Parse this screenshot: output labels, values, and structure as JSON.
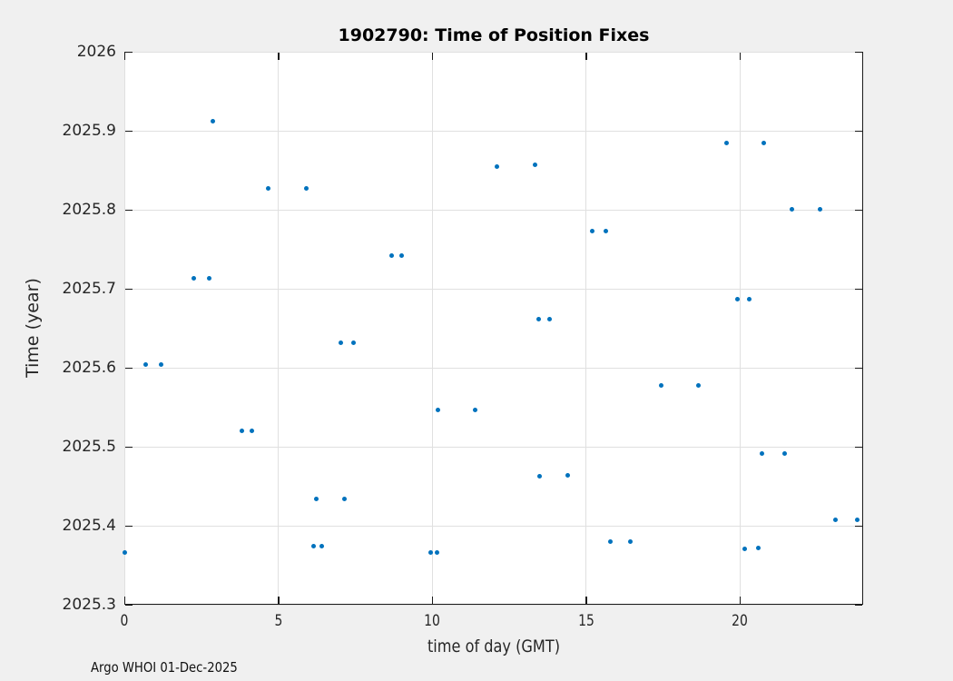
{
  "chart_data": {
    "type": "scatter",
    "title": "1902790: Time of Position Fixes",
    "xlabel": "time of day (GMT)",
    "ylabel": "Time (year)",
    "footer": "Argo WHOI 01-Dec-2025",
    "xlim": [
      0,
      24
    ],
    "ylim": [
      2025.3,
      2026
    ],
    "grid": true,
    "legend": "none",
    "xticks": [
      {
        "value": 0,
        "label": "0"
      },
      {
        "value": 5,
        "label": "5"
      },
      {
        "value": 10,
        "label": "10"
      },
      {
        "value": 15,
        "label": "15"
      },
      {
        "value": 20,
        "label": "20"
      }
    ],
    "yticks": [
      {
        "value": 2025.3,
        "label": "2025.3"
      },
      {
        "value": 2025.4,
        "label": "2025.4"
      },
      {
        "value": 2025.5,
        "label": "2025.5"
      },
      {
        "value": 2025.6,
        "label": "2025.6"
      },
      {
        "value": 2025.7,
        "label": "2025.7"
      },
      {
        "value": 2025.8,
        "label": "2025.8"
      },
      {
        "value": 2025.9,
        "label": "2025.9"
      },
      {
        "value": 2026,
        "label": "2026"
      }
    ],
    "colors": {
      "marker": "#0072BD",
      "figure_bg": "#F0F0F0",
      "plot_bg": "#FFFFFF",
      "axis": "#1A1A1A",
      "grid": "#E0E0E0"
    },
    "points": [
      [
        0.03,
        2025.366
      ],
      [
        0.71,
        2025.603
      ],
      [
        1.21,
        2025.603
      ],
      [
        2.27,
        2025.713
      ],
      [
        2.76,
        2025.713
      ],
      [
        2.88,
        2025.911
      ],
      [
        3.83,
        2025.519
      ],
      [
        4.17,
        2025.519
      ],
      [
        4.7,
        2025.827
      ],
      [
        5.94,
        2025.827
      ],
      [
        6.17,
        2025.374
      ],
      [
        6.26,
        2025.433
      ],
      [
        6.42,
        2025.374
      ],
      [
        7.06,
        2025.631
      ],
      [
        7.16,
        2025.433
      ],
      [
        7.45,
        2025.631
      ],
      [
        8.7,
        2025.741
      ],
      [
        9.02,
        2025.741
      ],
      [
        9.96,
        2025.366
      ],
      [
        10.17,
        2025.366
      ],
      [
        10.21,
        2025.546
      ],
      [
        11.41,
        2025.546
      ],
      [
        12.13,
        2025.854
      ],
      [
        13.36,
        2025.856
      ],
      [
        13.48,
        2025.661
      ],
      [
        13.49,
        2025.462
      ],
      [
        13.83,
        2025.661
      ],
      [
        14.42,
        2025.463
      ],
      [
        15.21,
        2025.772
      ],
      [
        15.65,
        2025.772
      ],
      [
        15.79,
        2025.379
      ],
      [
        16.46,
        2025.379
      ],
      [
        17.44,
        2025.577
      ],
      [
        18.65,
        2025.577
      ],
      [
        19.57,
        2025.884
      ],
      [
        19.92,
        2025.686
      ],
      [
        20.16,
        2025.37
      ],
      [
        20.3,
        2025.686
      ],
      [
        20.61,
        2025.371
      ],
      [
        20.72,
        2025.491
      ],
      [
        20.79,
        2025.884
      ],
      [
        21.47,
        2025.491
      ],
      [
        21.71,
        2025.8
      ],
      [
        22.61,
        2025.8
      ],
      [
        23.11,
        2025.407
      ],
      [
        23.81,
        2025.407
      ]
    ]
  }
}
